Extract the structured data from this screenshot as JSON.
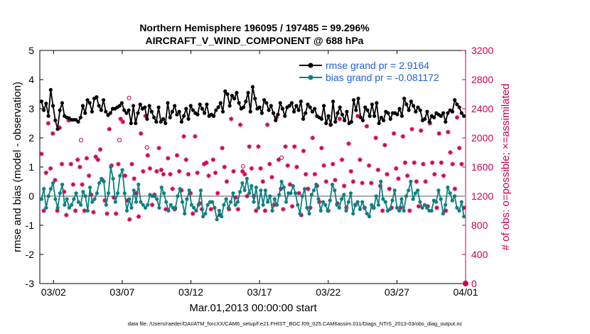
{
  "chart_data": {
    "type": "line",
    "title_line1": "Northern Hemisphere 196095 / 197485 = 99.296%",
    "title_line2": "AIRCRAFT_V_WIND_COMPONENT @ 688 hPa",
    "ylabel_left": "rmse and bias (model - observation)",
    "ylabel_right": "# of obs: o=possible; ×=assimilated",
    "xlabel": "Mar.01,2013 00:00:00 start",
    "footer": "data file: /Users/raeder/DAI/ATM_forcXX/CAM6_setup/f.e21.FHIST_BGC.f09_025.CAM6assim.011/Diags_NTrS_2013-03/obs_diag_output.nc",
    "ylim_left": [
      -3,
      5
    ],
    "ylim_right": [
      0,
      3200
    ],
    "xlim_days": [
      0,
      31
    ],
    "yticks_left": [
      "-3",
      "-2",
      "-1",
      "0",
      "1",
      "2",
      "3",
      "4",
      "5"
    ],
    "yticks_right": [
      "0",
      "400",
      "800",
      "1200",
      "1600",
      "2000",
      "2400",
      "2800",
      "3200"
    ],
    "xticks": [
      {
        "day": 1,
        "label": "03/02"
      },
      {
        "day": 6,
        "label": "03/07"
      },
      {
        "day": 11,
        "label": "03/12"
      },
      {
        "day": 16,
        "label": "03/17"
      },
      {
        "day": 21,
        "label": "03/22"
      },
      {
        "day": 26,
        "label": "03/27"
      },
      {
        "day": 31,
        "label": "04/01"
      }
    ],
    "series": [
      {
        "name": "rmse",
        "legend": "rmse grand pr = 2.9164",
        "color": "#000000",
        "values": [
          3.25,
          2.95,
          3.18,
          2.75,
          3.65,
          3.1,
          2.6,
          2.3,
          2.95,
          3.2,
          2.75,
          2.7,
          2.68,
          2.62,
          2.62,
          2.62,
          2.55,
          2.7,
          3.1,
          2.85,
          3.3,
          3.2,
          2.9,
          3.35,
          3.4,
          3.1,
          2.95,
          3.3,
          2.9,
          2.78,
          2.85,
          3.0,
          3.0,
          3.05,
          3.1,
          3.2,
          2.95,
          2.85,
          2.95,
          2.5,
          3.1,
          2.5,
          2.85,
          3.15,
          3.0,
          3.05,
          2.65,
          3.1,
          2.9,
          2.7,
          2.55,
          3.05,
          2.55,
          2.65,
          2.5,
          3.2,
          2.7,
          2.9,
          3.1,
          2.8,
          2.9,
          2.55,
          2.75,
          3.0,
          2.65,
          3.1,
          2.95,
          2.85,
          2.8,
          3.15,
          3.0,
          2.85,
          3.15,
          2.75,
          2.8,
          2.75,
          2.95,
          3.05,
          3.2,
          2.9,
          3.6,
          3.5,
          3.1,
          3.45,
          3.35,
          3.55,
          3.2,
          3.0,
          3.05,
          3.25,
          3.55,
          2.9,
          3.75,
          3.35,
          3.0,
          3.05,
          2.85,
          3.3,
          3.2,
          2.95,
          3.1,
          2.85,
          2.6,
          2.8,
          3.2,
          3.0,
          2.75,
          3.05,
          3.1,
          3.2,
          2.9,
          3.1,
          2.95,
          3.25,
          2.65,
          2.85,
          3.15,
          3.05,
          2.9,
          3.0,
          2.75,
          2.7,
          2.65,
          3.1,
          2.5,
          2.75,
          2.45,
          3.25,
          2.55,
          2.85,
          3.05,
          2.8,
          2.6,
          2.9,
          2.5,
          2.55,
          3.3,
          2.95,
          3.35,
          2.7,
          2.6,
          3.05,
          2.95,
          2.75,
          3.15,
          2.75,
          3.2,
          2.5,
          2.7,
          2.6,
          2.9,
          2.85,
          2.65,
          2.85,
          2.85,
          2.8,
          3.0,
          2.75,
          3.35,
          3.15,
          2.95,
          3.25,
          3.1,
          2.9,
          3.05,
          2.95,
          2.6,
          2.65,
          2.9,
          2.55,
          2.75,
          2.7,
          2.85,
          2.8,
          2.75,
          2.85,
          2.55,
          2.85,
          2.95,
          2.9,
          3.3,
          3.15,
          3.05,
          2.85,
          2.75
        ]
      },
      {
        "name": "bias",
        "legend": "bias grand pr = -0.081172",
        "color": "#0e8080",
        "values": [
          -0.1,
          0.25,
          -0.4,
          0.0,
          0.25,
          0.45,
          -0.1,
          -0.4,
          0.1,
          0.4,
          -0.3,
          -0.1,
          -0.4,
          -0.3,
          -0.1,
          0.1,
          -0.2,
          -0.3,
          0.15,
          0.0,
          -0.5,
          0.3,
          -0.2,
          -0.1,
          0.1,
          0.45,
          0.6,
          0.5,
          -0.3,
          0.1,
          1.0,
          0.6,
          -0.2,
          0.1,
          0.7,
          0.9,
          0.1,
          -0.5,
          -0.1,
          -0.4,
          0.2,
          -0.2,
          0.4,
          -0.2,
          -0.3,
          -0.4,
          -0.3,
          0.05,
          0.0,
          0.0,
          -0.1,
          -0.4,
          0.3,
          0.1,
          -0.2,
          -0.5,
          -0.3,
          -0.4,
          -0.4,
          0.0,
          0.25,
          -0.2,
          -0.6,
          -0.1,
          0.2,
          -0.3,
          -0.4,
          -0.5,
          -0.3,
          0.2,
          -0.7,
          -0.6,
          -0.3,
          -0.2,
          -0.2,
          -0.4,
          -0.8,
          -0.5,
          -0.7,
          -0.3,
          -0.1,
          -0.4,
          -0.2,
          0.1,
          -0.3,
          -0.2,
          0.15,
          0.45,
          0.2,
          0.6,
          0.1,
          0.35,
          -0.2,
          0.3,
          -0.4,
          0.2,
          -0.3,
          0.2,
          -0.2,
          0.0,
          -0.5,
          -0.1,
          -0.3,
          0.05,
          0.5,
          0.3,
          -0.2,
          0.1,
          0.1,
          0.35,
          0.1,
          -0.3,
          -0.6,
          0.0,
          0.25,
          -0.4,
          -0.6,
          0.05,
          0.2,
          0.4,
          -0.1,
          -0.5,
          -0.2,
          -0.3,
          -0.5,
          -0.15,
          0.4,
          0.2,
          -0.3,
          -0.4,
          -0.1,
          0.05,
          -0.5,
          -0.2,
          0.1,
          -0.6,
          -0.3,
          -0.2,
          -0.45,
          -0.2,
          -0.4,
          -0.6,
          -0.7,
          -0.3,
          -0.4,
          0.0,
          -0.3,
          0.5,
          -0.1,
          -0.2,
          -0.5,
          -0.45,
          -0.15,
          0.2,
          -0.4,
          -0.5,
          -0.1,
          -0.5,
          0.0,
          0.2,
          0.5,
          -0.1,
          0.1,
          0.2,
          -0.2,
          -0.4,
          -0.3,
          -0.4,
          -0.5,
          -0.5,
          -0.15,
          -0.2,
          0.2,
          -0.1,
          -0.6,
          -0.3,
          0.3,
          0.1,
          -0.15,
          0.0,
          -0.4,
          -0.5,
          -0.2,
          -0.7
        ]
      },
      {
        "name": "obs assimilated",
        "marker": "star",
        "color": "#cc0055",
        "values": [
          1780,
          1000,
          1520,
          2200,
          1580,
          2060,
          1420,
          1000,
          2140,
          1640,
          1260,
          940,
          2240,
          1640,
          1360,
          1000,
          1700,
          1600,
          1360,
          1000,
          1720,
          1480,
          1220,
          980,
          1740,
          1700,
          1840,
          1420,
          1140,
          960,
          2120,
          1620,
          1180,
          960,
          1640,
          2260,
          2220,
          1480,
          1140,
          880,
          1640,
          1440,
          1240,
          920,
          2060,
          1540,
          2300,
          1760,
          1580,
          1080,
          1220,
          1540,
          1860,
          1560,
          1500,
          1020,
          1720,
          1500,
          1300,
          1020,
          1760,
          1540,
          1280,
          2020,
          1700,
          1500,
          1240,
          960,
          2020,
          1520,
          1100,
          1020,
          1640,
          1660,
          1480,
          1020,
          1700,
          1520,
          1240,
          940,
          1860,
          1600,
          1400,
          1020,
          2260,
          1540,
          1180,
          1020,
          2180,
          1540,
          1500,
          1200,
          1880,
          1580,
          1200,
          1000,
          1880,
          1580,
          1400,
          1000,
          2180,
          1640,
          1460,
          1080,
          2280,
          1700,
          1300,
          1020,
          1880,
          1620,
          1360,
          1060,
          1880,
          1600,
          1240,
          940,
          1820,
          1500,
          1300,
          1040,
          2000,
          1500,
          1340,
          1120,
          1860,
          1620,
          1400,
          1000,
          2180,
          1640,
          1420,
          1100,
          2260,
          1700,
          1340,
          1040,
          1920,
          1540,
          1400,
          1080,
          2300,
          1700,
          1380,
          1040,
          2160,
          1620,
          1380,
          1040,
          2000,
          1560,
          1340,
          1000,
          1900,
          1500,
          1300,
          1040,
          2060,
          1580,
          1440,
          1040,
          2020,
          1660,
          1480,
          1000,
          2120,
          1660,
          1400,
          1060,
          2100,
          1640,
          1400,
          1060,
          2200,
          1660,
          1500,
          1040,
          2060,
          1660,
          1480,
          1000,
          2080,
          1800,
          1640,
          1300,
          2280,
          1860,
          1640,
          1040
        ]
      }
    ],
    "obs_possible_extra": [
      {
        "day": 3.0,
        "value": 1900
      },
      {
        "day": 5.8,
        "value": 1900
      },
      {
        "day": 7.8,
        "value": 1800
      },
      {
        "day": 14.8,
        "value": 1540
      },
      {
        "day": 17.6,
        "value": 1660
      },
      {
        "day": 6.5,
        "value": 2480
      }
    ]
  }
}
